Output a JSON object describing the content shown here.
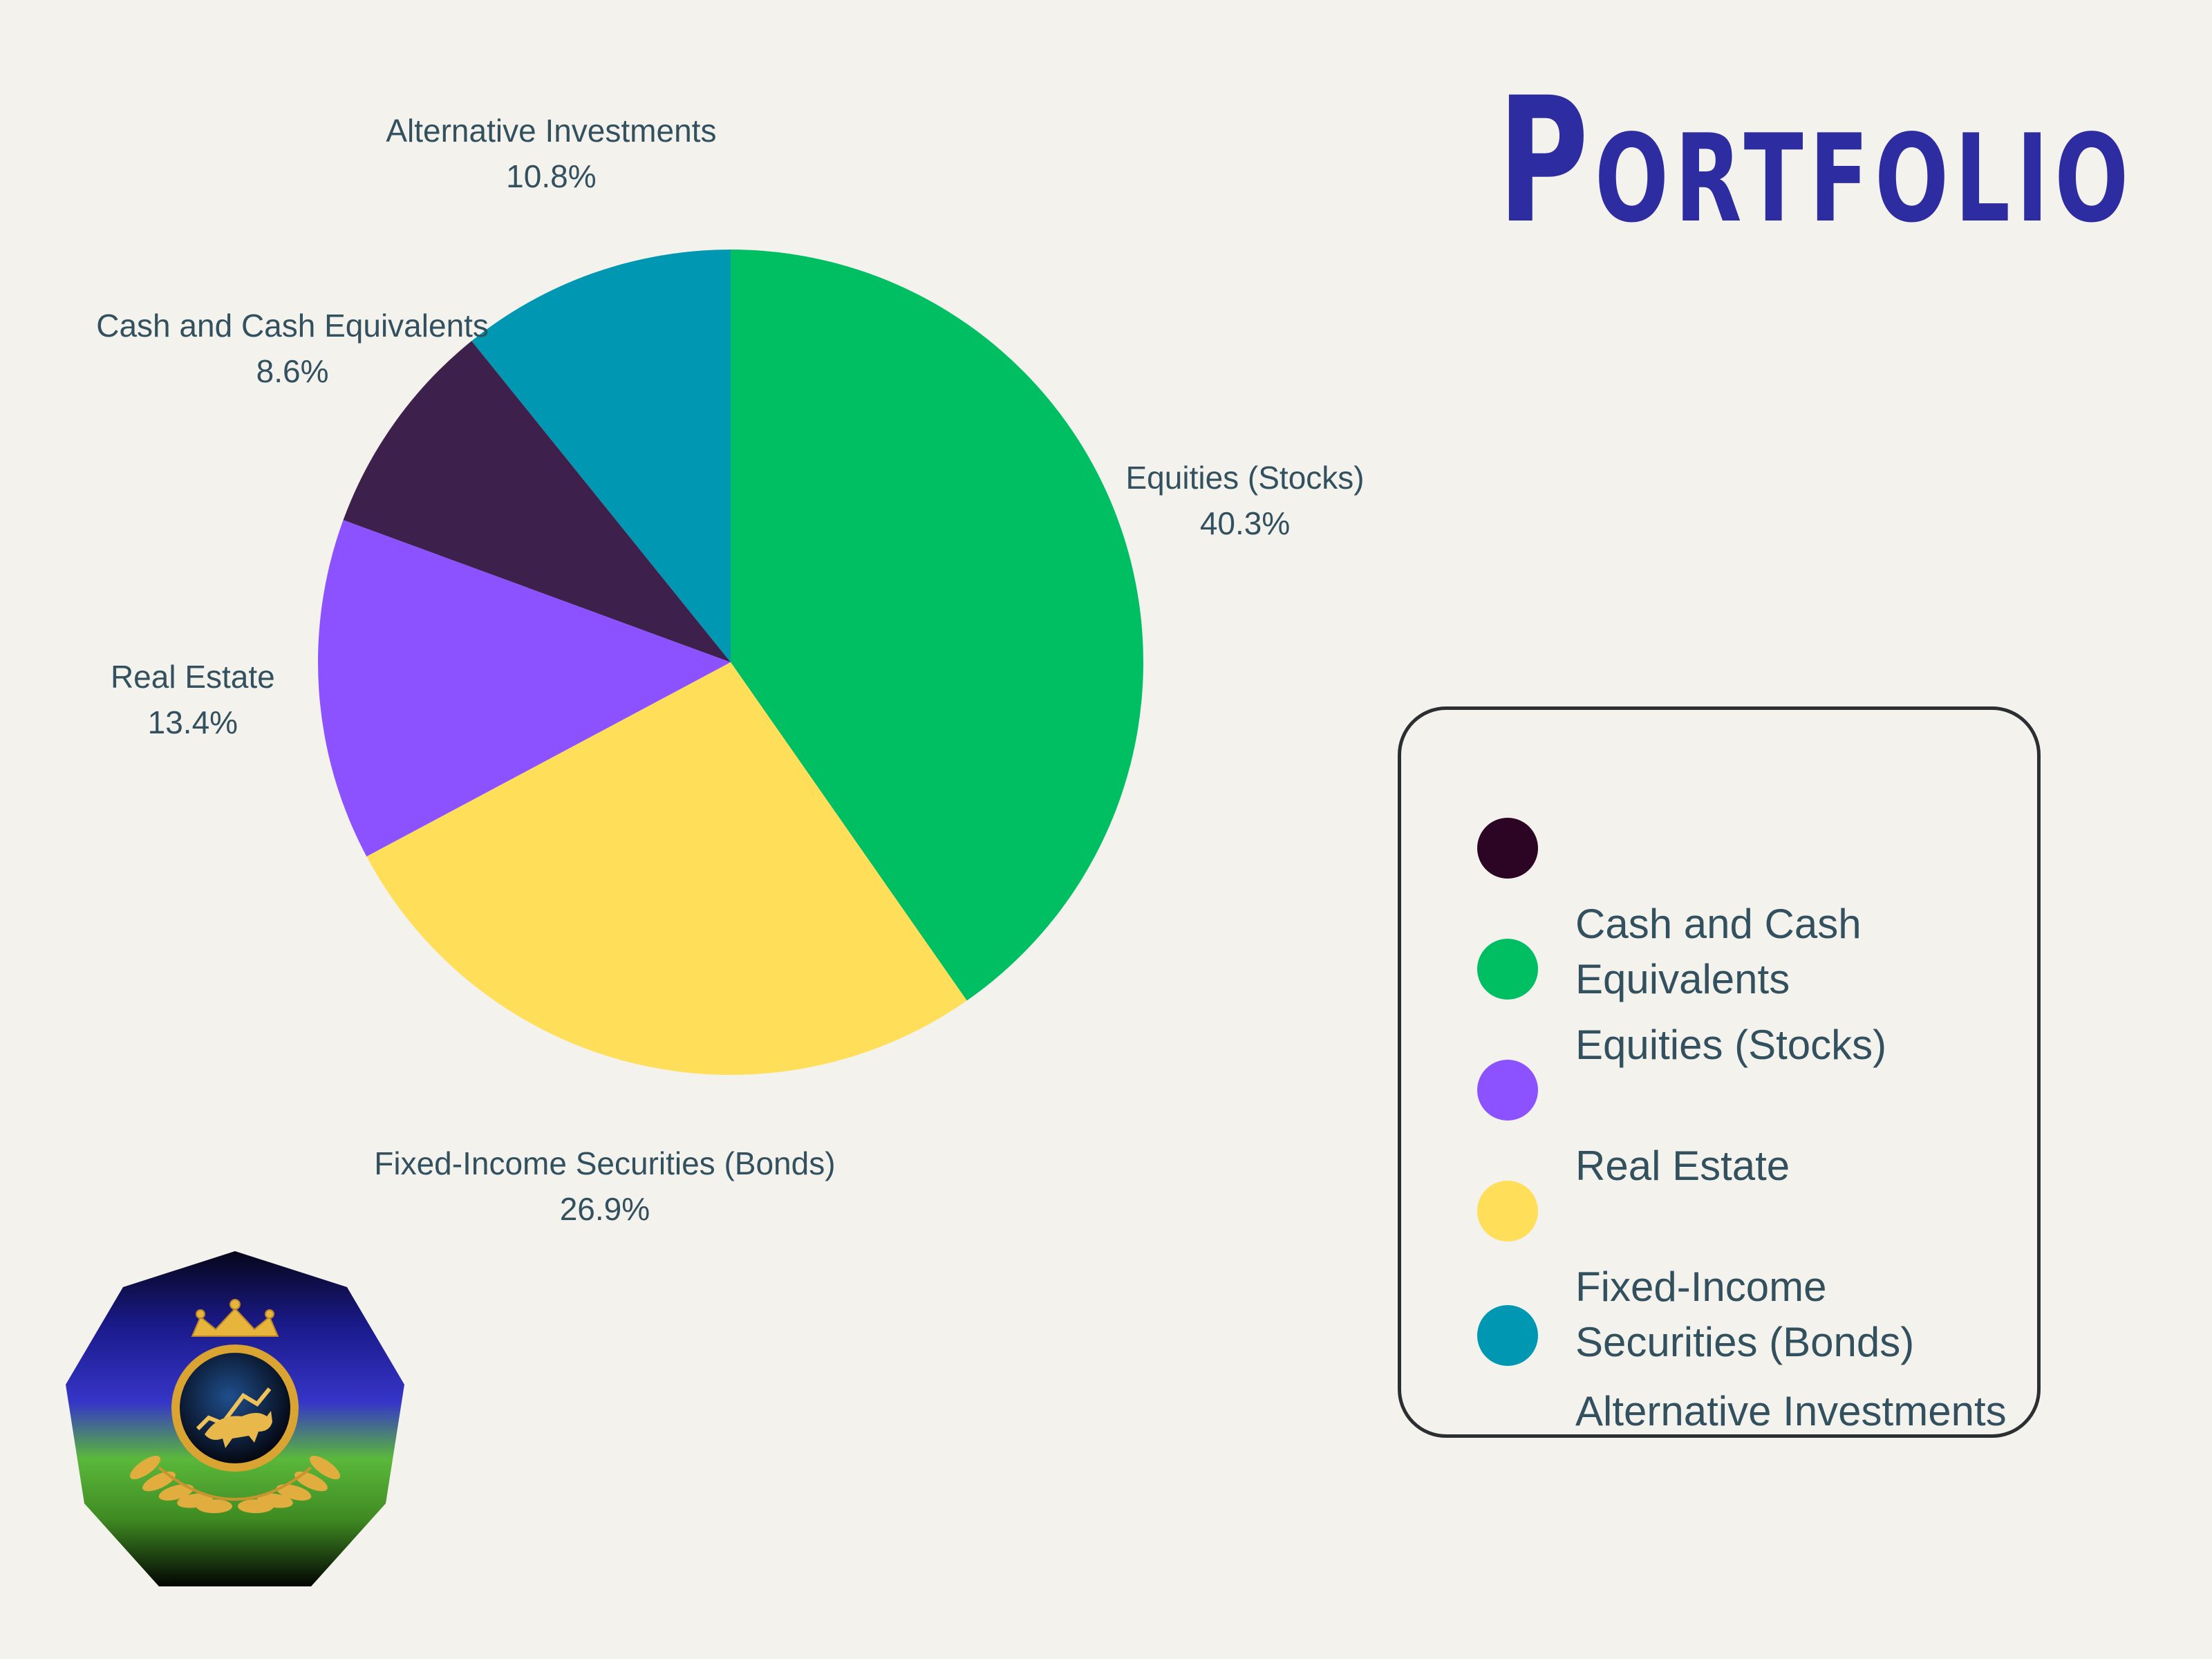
{
  "title": "Portfolio",
  "chart_data": {
    "type": "pie",
    "title": "",
    "slices": [
      {
        "name": "Equities (Stocks)",
        "value": 40.3,
        "pct_label": "40.3%",
        "color": "#00bf63"
      },
      {
        "name": "Fixed-Income Securities (Bonds)",
        "value": 26.9,
        "pct_label": "26.9%",
        "color": "#ffde59"
      },
      {
        "name": "Real Estate",
        "value": 13.4,
        "pct_label": "13.4%",
        "color": "#8c52ff"
      },
      {
        "name": "Cash and Cash Equivalents",
        "value": 8.6,
        "pct_label": "8.6%",
        "color": "#3d214c"
      },
      {
        "name": "Alternative Investments",
        "value": 10.8,
        "pct_label": "10.8%",
        "color": "#0097b2"
      }
    ],
    "start": "top",
    "direction": "clockwise"
  },
  "legend": {
    "items": [
      {
        "label": "Cash and Cash Equivalents",
        "color": "#2c0424"
      },
      {
        "label": "Equities (Stocks)",
        "color": "#00bf63"
      },
      {
        "label": "Real Estate",
        "color": "#8c52ff"
      },
      {
        "label": "Fixed-Income Securities (Bonds)",
        "color": "#ffde59"
      },
      {
        "label": "Alternative Investments",
        "color": "#0097b2"
      }
    ]
  },
  "logo": {
    "icon": "bull-crown-laurel-emblem-icon"
  }
}
